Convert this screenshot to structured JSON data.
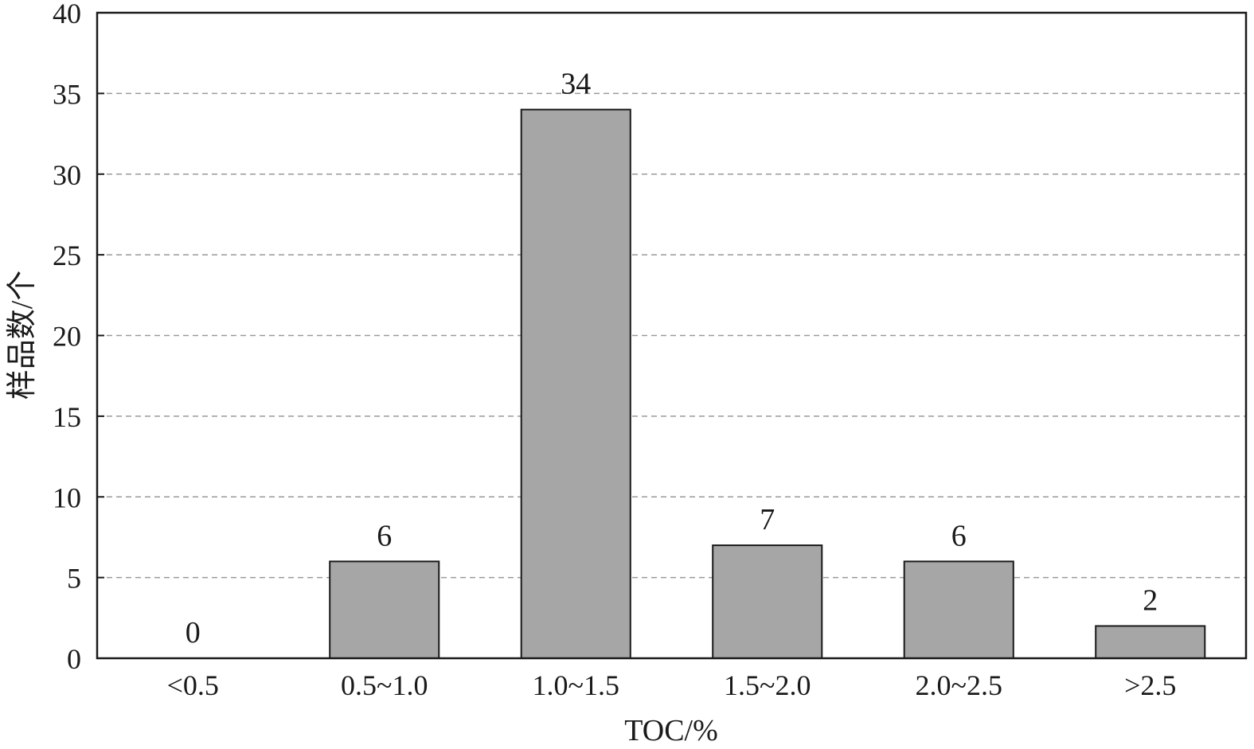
{
  "chart_data": {
    "type": "bar",
    "categories": [
      "<0.5",
      "0.5~1.0",
      "1.0~1.5",
      "1.5~2.0",
      "2.0~2.5",
      ">2.5"
    ],
    "values": [
      0,
      6,
      34,
      7,
      6,
      2
    ],
    "data_labels": [
      "0",
      "6",
      "34",
      "7",
      "6",
      "2"
    ],
    "xlabel": "TOC/%",
    "ylabel": "样品数/个",
    "ylim": [
      0,
      40
    ],
    "yticks": [
      0,
      5,
      10,
      15,
      20,
      25,
      30,
      35,
      40
    ],
    "grid": "horizontal dashed",
    "colors": {
      "bar": "#a6a6a6",
      "edge": "#1a1a1a",
      "grid": "#9a9a9a"
    }
  }
}
